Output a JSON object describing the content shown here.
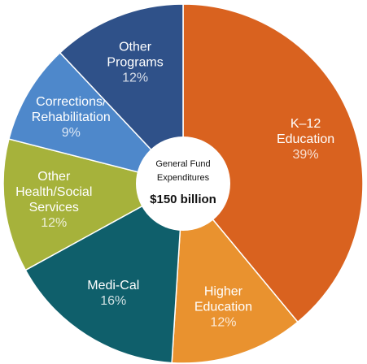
{
  "chart_data": {
    "type": "pie",
    "categories": [
      [
        "K–12",
        "Education"
      ],
      [
        "Higher",
        "Education"
      ],
      [
        "Medi-Cal"
      ],
      [
        "Other",
        "Health/Social",
        "Services"
      ],
      [
        "Corrections/",
        "Rehabilitation"
      ],
      [
        "Other",
        "Programs"
      ]
    ],
    "values": [
      39,
      12,
      16,
      12,
      9,
      12
    ],
    "value_labels": [
      "39%",
      "12%",
      "16%",
      "12%",
      "9%",
      "12%"
    ],
    "colors": [
      "#d9621f",
      "#e9922f",
      "#0f5f6b",
      "#a6b23b",
      "#4e88cb",
      "#2f5189"
    ],
    "center_title": [
      "General Fund",
      "Expenditures"
    ],
    "center_value": "$150 billion"
  }
}
